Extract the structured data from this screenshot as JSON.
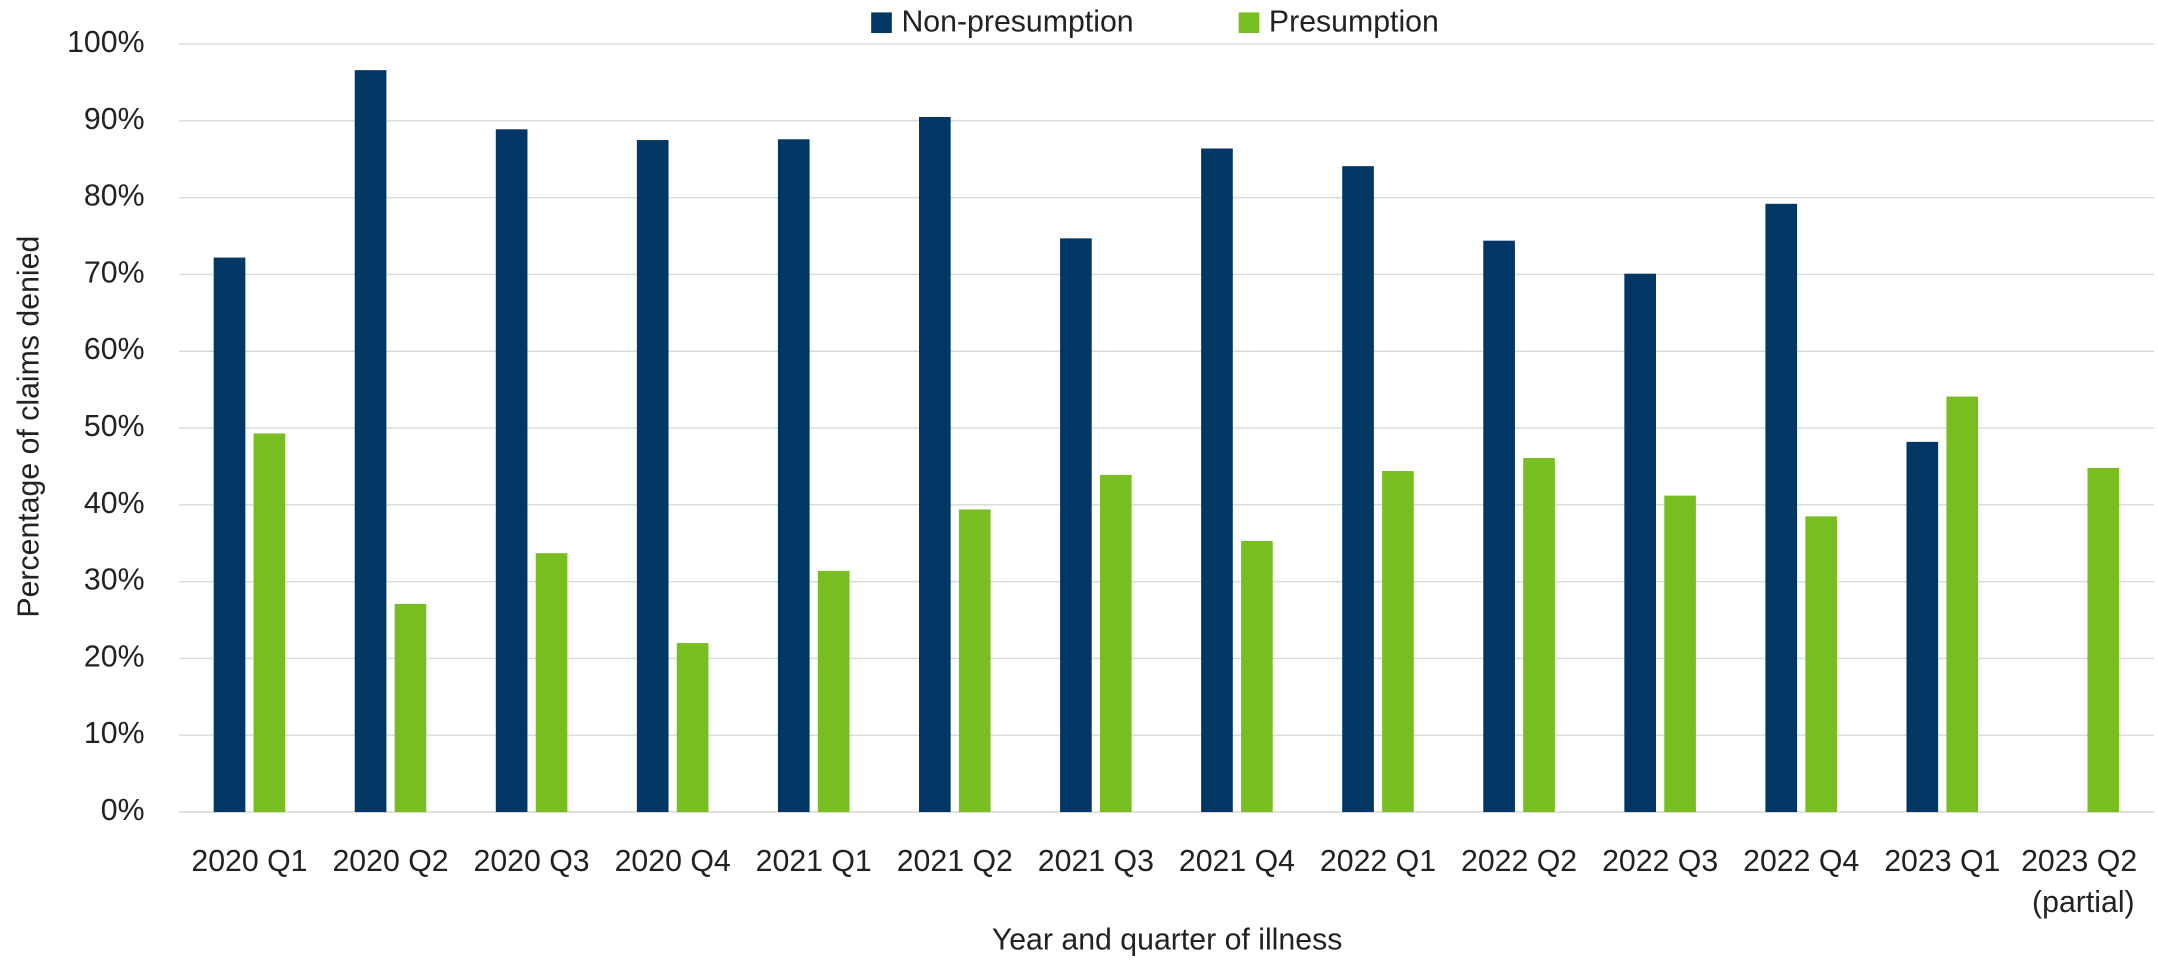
{
  "chart_data": {
    "type": "bar",
    "x_label": "Year and quarter of illness",
    "y_label": "Percentage of claims denied",
    "categories": [
      "2020 Q1",
      "2020 Q2",
      "2020 Q3",
      "2020 Q4",
      "2021 Q1",
      "2021 Q2",
      "2021 Q3",
      "2021 Q4",
      "2022 Q1",
      "2022 Q2",
      "2022 Q3",
      "2022 Q4",
      "2023 Q1",
      "2023 Q2 (partial)"
    ],
    "series": [
      {
        "name": "Non-presumption",
        "color": "#003764",
        "values": [
          72.2,
          96.6,
          88.9,
          87.5,
          87.6,
          90.5,
          74.7,
          86.4,
          84.1,
          74.4,
          70.1,
          79.2,
          48.2,
          null
        ]
      },
      {
        "name": "Presumption",
        "color": "#78be20",
        "values": [
          49.3,
          27.1,
          33.7,
          22.0,
          31.4,
          39.4,
          43.9,
          35.3,
          44.4,
          46.1,
          41.2,
          38.5,
          54.1,
          44.8
        ]
      }
    ],
    "ylim": [
      0,
      100
    ],
    "yticks": [
      {
        "value": 0,
        "label": "0%"
      },
      {
        "value": 10,
        "label": "10%"
      },
      {
        "value": 20,
        "label": "20%"
      },
      {
        "value": 30,
        "label": "30%"
      },
      {
        "value": 40,
        "label": "40%"
      },
      {
        "value": 50,
        "label": "50%"
      },
      {
        "value": 60,
        "label": "60%"
      },
      {
        "value": 70,
        "label": "70%"
      },
      {
        "value": 80,
        "label": "80%"
      },
      {
        "value": 90,
        "label": "90%"
      },
      {
        "value": 100,
        "label": "100%"
      }
    ],
    "grid": true,
    "legend": "top"
  }
}
